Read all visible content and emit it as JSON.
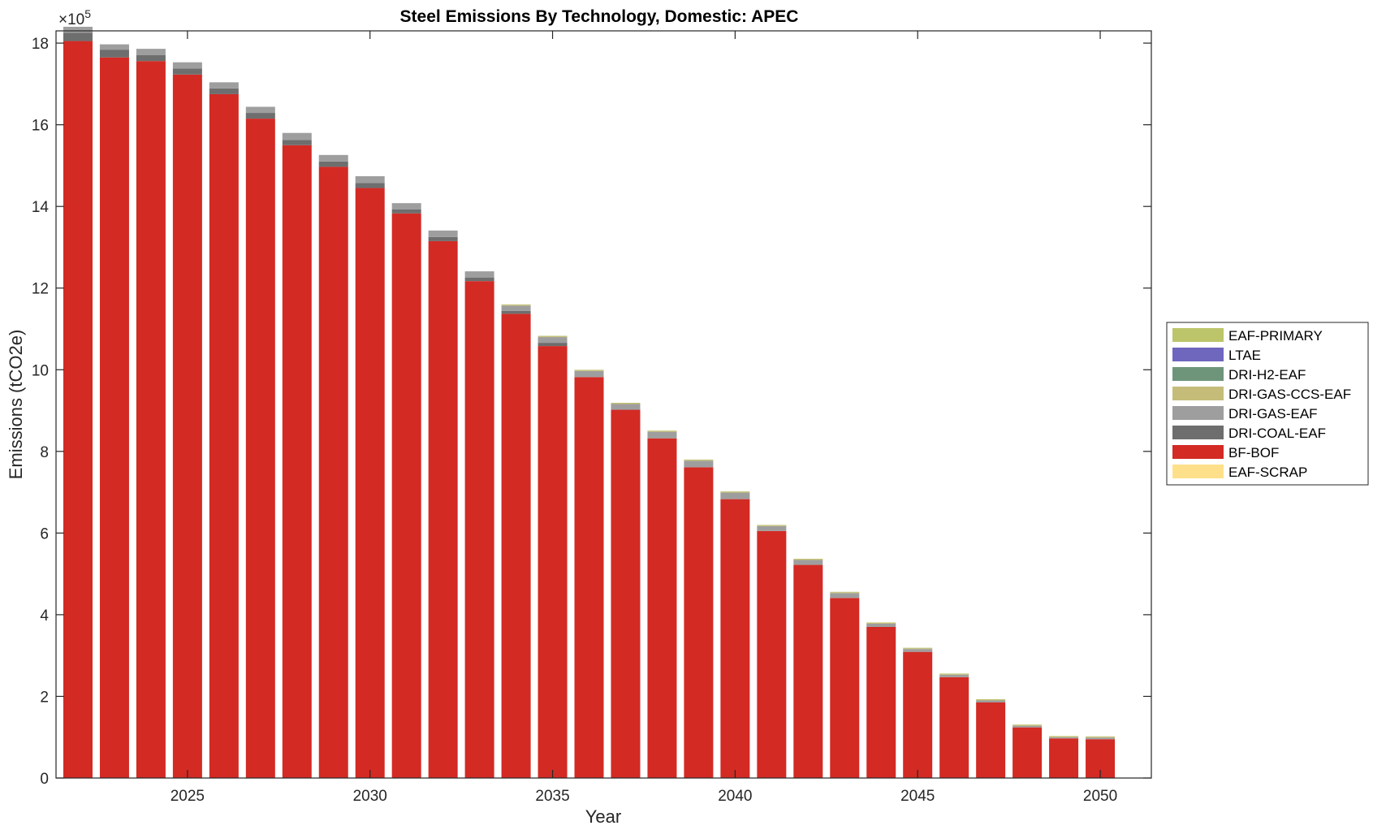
{
  "chart_data": {
    "type": "bar",
    "stacked": true,
    "title": "Steel Emissions By Technology, Domestic: APEC",
    "xlabel": "Year",
    "ylabel": "Emissions (tCO2e)",
    "y_multiplier_label": "×10",
    "y_multiplier_exponent": "5",
    "ylim": [
      0,
      1830000
    ],
    "y_ticks": [
      0,
      200000,
      400000,
      600000,
      800000,
      1000000,
      1200000,
      1400000,
      1600000,
      1800000
    ],
    "y_tick_labels": [
      "0",
      "2",
      "4",
      "6",
      "8",
      "10",
      "12",
      "14",
      "16",
      "18"
    ],
    "xlim": [
      2021.4,
      2051.4
    ],
    "x_ticks": [
      2025,
      2030,
      2035,
      2040,
      2045,
      2050
    ],
    "x_tick_labels": [
      "2025",
      "2030",
      "2035",
      "2040",
      "2045",
      "2050"
    ],
    "grid": false,
    "legend_position": "right-outside",
    "categories": [
      2022,
      2023,
      2024,
      2025,
      2026,
      2027,
      2028,
      2029,
      2030,
      2031,
      2032,
      2033,
      2034,
      2035,
      2036,
      2037,
      2038,
      2039,
      2040,
      2041,
      2042,
      2043,
      2044,
      2045,
      2046,
      2047,
      2048,
      2049,
      2050
    ],
    "series": [
      {
        "name": "EAF-SCRAP",
        "color": "#FFE08A",
        "values": [
          0,
          0,
          0,
          0,
          0,
          0,
          0,
          0,
          0,
          0,
          0,
          0,
          0,
          0,
          0,
          0,
          0,
          0,
          0,
          0,
          0,
          0,
          0,
          0,
          0,
          0,
          0,
          0,
          0
        ]
      },
      {
        "name": "BF-BOF",
        "color": "#D32A24",
        "values": [
          1805000,
          1765000,
          1756000,
          1723000,
          1675000,
          1615000,
          1550000,
          1497000,
          1445000,
          1383000,
          1315000,
          1217000,
          1137000,
          1058000,
          982000,
          902000,
          832000,
          761000,
          683000,
          605000,
          522000,
          441000,
          370000,
          309000,
          247000,
          185000,
          124000,
          97000,
          95000
        ]
      },
      {
        "name": "DRI-COAL-EAF",
        "color": "#6E6E6E",
        "values": [
          20000,
          19000,
          15000,
          15000,
          14000,
          14000,
          13000,
          13000,
          12000,
          10000,
          10000,
          9000,
          7000,
          8000,
          0,
          0,
          0,
          0,
          0,
          0,
          0,
          0,
          0,
          0,
          0,
          0,
          0,
          0,
          0
        ]
      },
      {
        "name": "DRI-GAS-EAF",
        "color": "#9E9E9E",
        "values": [
          15000,
          13000,
          15000,
          15000,
          15000,
          15000,
          17000,
          16000,
          17000,
          15000,
          16000,
          15000,
          13000,
          14000,
          15000,
          14000,
          16000,
          16000,
          16000,
          12000,
          12000,
          12000,
          8000,
          7000,
          6000,
          5000,
          4000,
          3000,
          4000
        ]
      },
      {
        "name": "DRI-GAS-CCS-EAF",
        "color": "#C6BC7A",
        "values": [
          0,
          0,
          0,
          0,
          0,
          0,
          0,
          0,
          0,
          0,
          0,
          0,
          2000,
          2000,
          2000,
          2000,
          2000,
          2000,
          2000,
          2000,
          2000,
          2000,
          2000,
          2000,
          2000,
          2000,
          2000,
          2000,
          2000
        ]
      },
      {
        "name": "DRI-H2-EAF",
        "color": "#6E957A",
        "values": [
          0,
          0,
          0,
          0,
          0,
          0,
          0,
          0,
          0,
          0,
          0,
          0,
          0,
          0,
          0,
          0,
          0,
          0,
          0,
          0,
          0,
          0,
          0,
          0,
          0,
          0,
          0,
          0,
          0
        ]
      },
      {
        "name": "LTAE",
        "color": "#6F66BE",
        "values": [
          0,
          0,
          0,
          0,
          0,
          0,
          0,
          0,
          0,
          0,
          0,
          0,
          0,
          0,
          0,
          0,
          0,
          0,
          0,
          0,
          0,
          0,
          0,
          0,
          0,
          0,
          0,
          0,
          0
        ]
      },
      {
        "name": "EAF-PRIMARY",
        "color": "#BCC56A",
        "values": [
          0,
          0,
          0,
          0,
          0,
          0,
          0,
          0,
          0,
          0,
          0,
          0,
          1000,
          1000,
          1000,
          1000,
          1000,
          1000,
          1000,
          1000,
          1000,
          1000,
          1000,
          1000,
          1000,
          1000,
          1000,
          1000,
          1000
        ]
      }
    ],
    "legend_order": [
      "EAF-PRIMARY",
      "LTAE",
      "DRI-H2-EAF",
      "DRI-GAS-CCS-EAF",
      "DRI-GAS-EAF",
      "DRI-COAL-EAF",
      "BF-BOF",
      "EAF-SCRAP"
    ]
  }
}
